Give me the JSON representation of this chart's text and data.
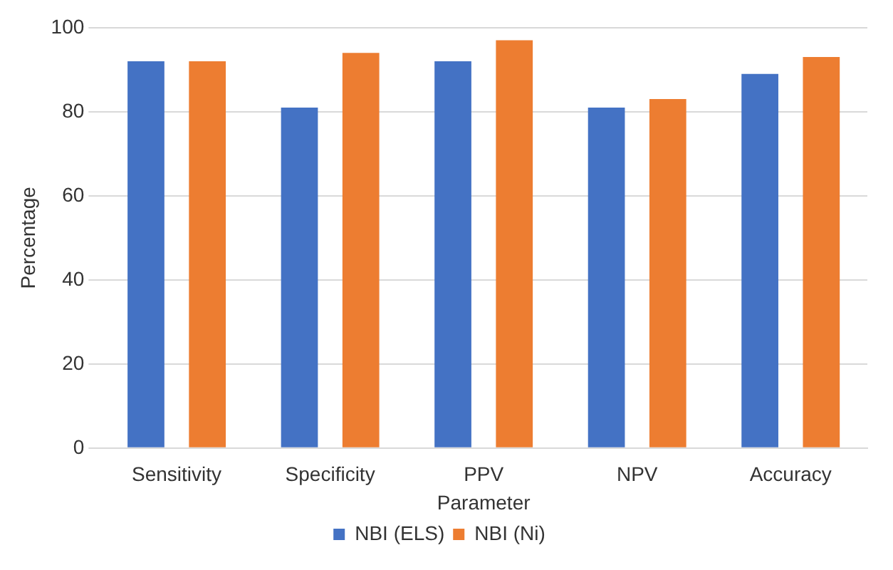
{
  "chart_data": {
    "type": "bar",
    "xlabel": "Parameter",
    "ylabel": "Percentage",
    "categories": [
      "Sensitivity",
      "Specificity",
      "PPV",
      "NPV",
      "Accuracy"
    ],
    "series": [
      {
        "name": "NBI (ELS)",
        "color": "#4472c4",
        "values": [
          92,
          81,
          92,
          81,
          89
        ]
      },
      {
        "name": "NBI (Ni)",
        "color": "#ed7d31",
        "values": [
          92,
          94,
          97,
          83,
          93
        ]
      }
    ],
    "ylim": [
      0,
      100
    ],
    "yticks": [
      0,
      20,
      40,
      60,
      80,
      100
    ],
    "grid": "y",
    "legend": "bottom"
  }
}
